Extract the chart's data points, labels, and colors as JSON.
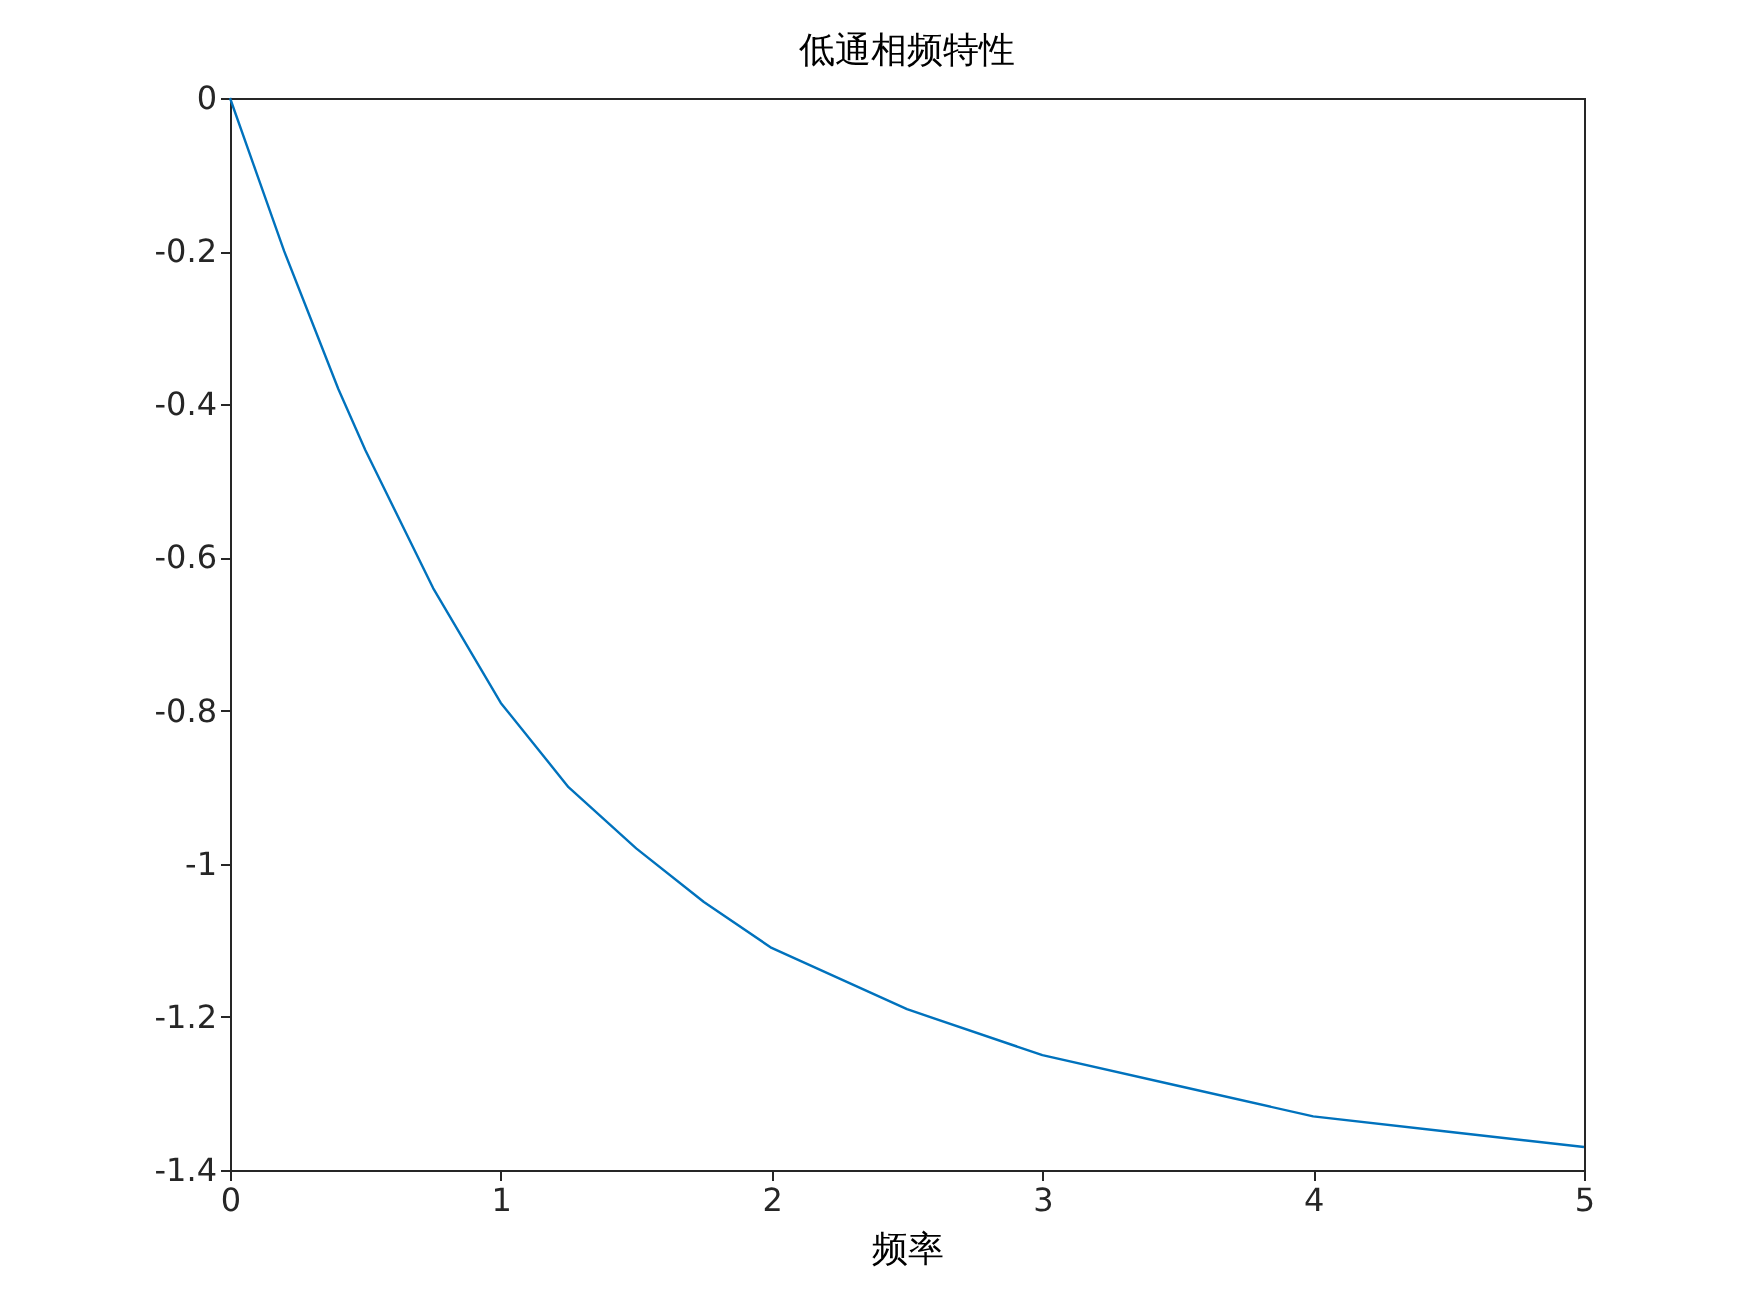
{
  "chart_data": {
    "type": "line",
    "title": "低通相频特性",
    "xlabel": "频率",
    "x": [
      0,
      0.1,
      0.2,
      0.3,
      0.4,
      0.5,
      0.75,
      1,
      1.25,
      1.5,
      1.75,
      2,
      2.5,
      3,
      3.5,
      4,
      4.5,
      5
    ],
    "series": [
      {
        "color": "#0072bd",
        "values": [
          0,
          -0.1,
          -0.2,
          -0.29,
          -0.38,
          -0.46,
          -0.64,
          -0.79,
          -0.9,
          -0.98,
          -1.05,
          -1.11,
          -1.19,
          -1.25,
          -1.29,
          -1.33,
          -1.35,
          -1.37
        ]
      }
    ],
    "xlim": [
      0,
      5
    ],
    "xticks": [
      0,
      1,
      2,
      3,
      4,
      5
    ],
    "ylim": [
      -1.4,
      0
    ],
    "yticks": [
      -1.4,
      -1.2,
      -1,
      -0.8,
      -0.6,
      -0.4,
      -0.2,
      0
    ],
    "grid": false,
    "legend": false,
    "marker": "none",
    "line_style": "solid"
  }
}
